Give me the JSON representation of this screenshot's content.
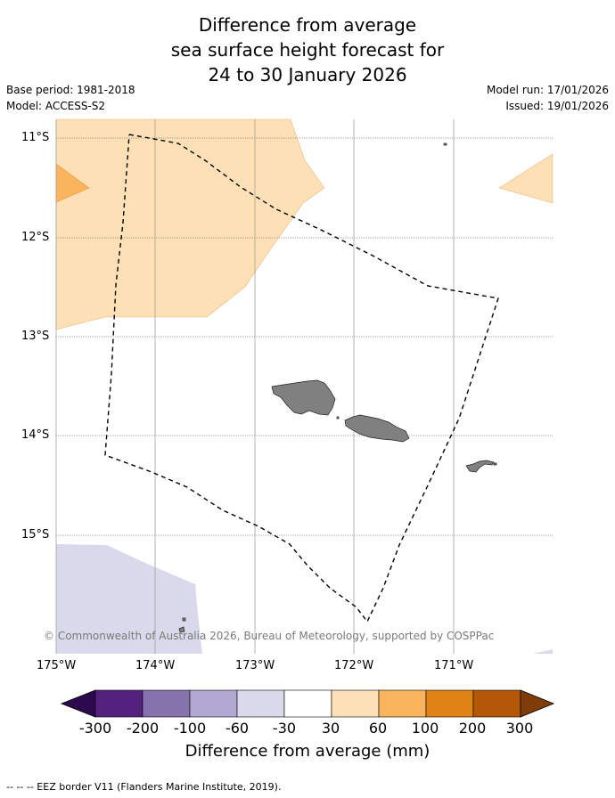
{
  "title": {
    "line1": "Difference from average",
    "line2": "sea surface height forecast for",
    "line3": "24 to 30 January 2026"
  },
  "meta": {
    "base_period": "Base period: 1981-2018",
    "model": "Model: ACCESS-S2",
    "model_run": "Model run: 17/01/2026",
    "issued": "Issued: 19/01/2026"
  },
  "axes": {
    "lat_labels": [
      "11°S",
      "12°S",
      "13°S",
      "14°S",
      "15°S"
    ],
    "lon_labels": [
      "175°W",
      "174°W",
      "173°W",
      "172°W",
      "171°W"
    ]
  },
  "copyright": "© Commonwealth of Australia 2026, Bureau of Meteorology, supported by COSPPac",
  "colorbar": {
    "title": "Difference from average (mm)",
    "tick_labels": [
      "-300",
      "-200",
      "-100",
      "-60",
      "-30",
      "30",
      "60",
      "100",
      "200",
      "300"
    ],
    "colors": [
      "#2d0a4e",
      "#54217f",
      "#8473ad",
      "#b2a9d3",
      "#d9d9eb",
      "#ffffff",
      "#fde0b6",
      "#f9b45d",
      "#e08316",
      "#b35806",
      "#7f3b08"
    ]
  },
  "footer": "-- -- -- EEZ border V11 (Flanders Marine Institute, 2019)."
}
